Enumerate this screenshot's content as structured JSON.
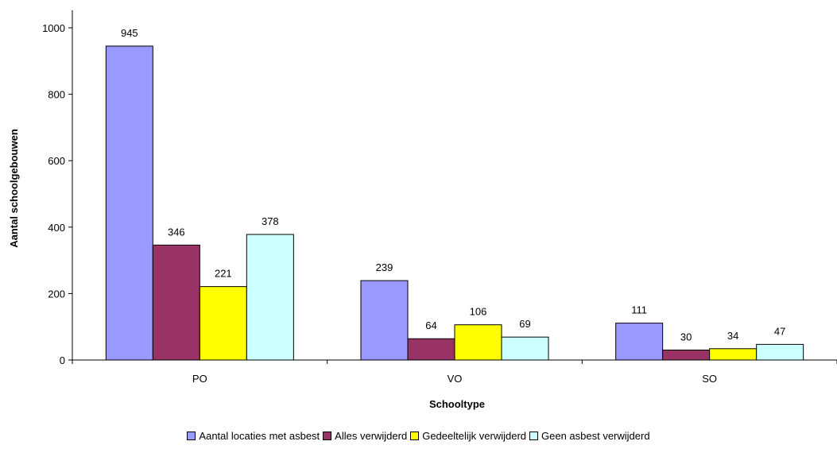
{
  "chart_data": {
    "type": "bar",
    "title": "",
    "xlabel": "Schooltype",
    "ylabel": "Aantal schoolgebouwen",
    "categories": [
      "PO",
      "VO",
      "SO"
    ],
    "ylim": [
      0,
      1000
    ],
    "yticks": [
      0,
      200,
      400,
      600,
      800,
      1000
    ],
    "grid": false,
    "legend_position": "bottom",
    "series": [
      {
        "name": "Aantal locaties met asbest",
        "color": "#9999FF",
        "values": [
          945,
          239,
          111
        ]
      },
      {
        "name": "Alles verwijderd",
        "color": "#993366",
        "values": [
          346,
          64,
          30
        ]
      },
      {
        "name": "Gedeeltelijk verwijderd",
        "color": "#FFFF00",
        "values": [
          221,
          106,
          34
        ]
      },
      {
        "name": "Geen asbest verwijderd",
        "color": "#CCFFFF",
        "values": [
          378,
          69,
          47
        ]
      }
    ]
  }
}
